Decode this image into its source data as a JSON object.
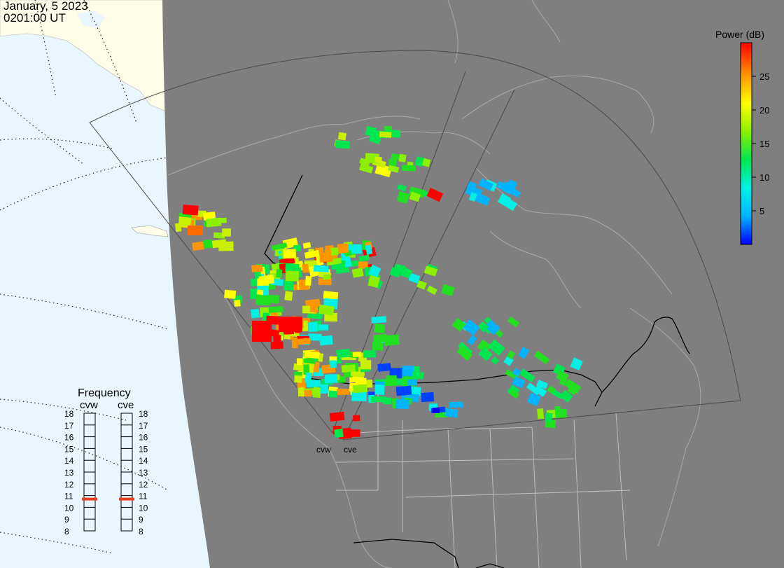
{
  "header": {
    "date": "January, 5 2023",
    "time": "0201:00 UT"
  },
  "colorbar": {
    "title": "Power (dB)",
    "ticks": [
      "25",
      "20",
      "15",
      "10",
      "5"
    ],
    "tick_values": [
      25,
      20,
      15,
      10,
      5
    ],
    "range": [
      0,
      30
    ],
    "colors": [
      "#0000ff",
      "#00b4ff",
      "#00f0e6",
      "#00e650",
      "#8cf000",
      "#ffff00",
      "#ff9600",
      "#ff0000"
    ]
  },
  "radars": [
    {
      "code": "cvw",
      "frequency_mhz": 11
    },
    {
      "code": "cve",
      "frequency_mhz": 11
    }
  ],
  "frequency_panel": {
    "title": "Frequency",
    "scale": [
      18,
      17,
      16,
      15,
      14,
      13,
      12,
      11,
      10,
      9,
      8
    ],
    "indicator_color": "#e8401c"
  },
  "map_colors": {
    "night": "#7f7f7f",
    "day_ocean": "#eaf6ff",
    "day_land": "#fdfde8",
    "coast_night": "#a8a8a8",
    "fov": "#4c4c4c"
  }
}
